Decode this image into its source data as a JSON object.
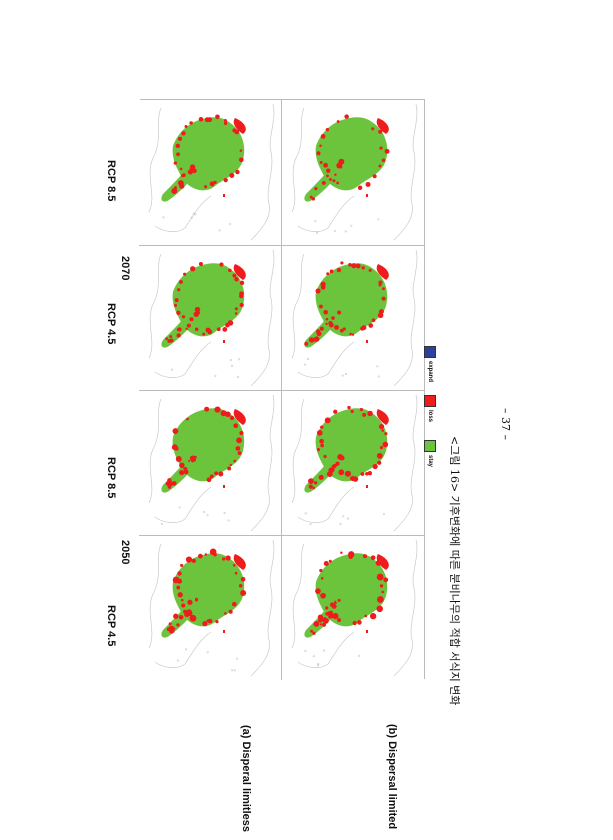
{
  "figure": {
    "years": [
      "2050",
      "2070"
    ],
    "scenarios": [
      "RCP 4.5",
      "RCP 8.5",
      "RCP 4.5",
      "RCP 8.5"
    ],
    "rows": [
      "(a) Disperal limitless",
      "(b) Dispersal limited"
    ],
    "legend": [
      {
        "label": "stay",
        "color": "#6cc33c"
      },
      {
        "label": "loss",
        "color": "#ee1c1c"
      },
      {
        "label": "expand",
        "color": "#2e3f9e"
      }
    ],
    "caption": "<그림 16> 기후변화에 따른 분비나무의 적합 서식지 변화"
  },
  "page": {
    "number": "– 37 –"
  }
}
